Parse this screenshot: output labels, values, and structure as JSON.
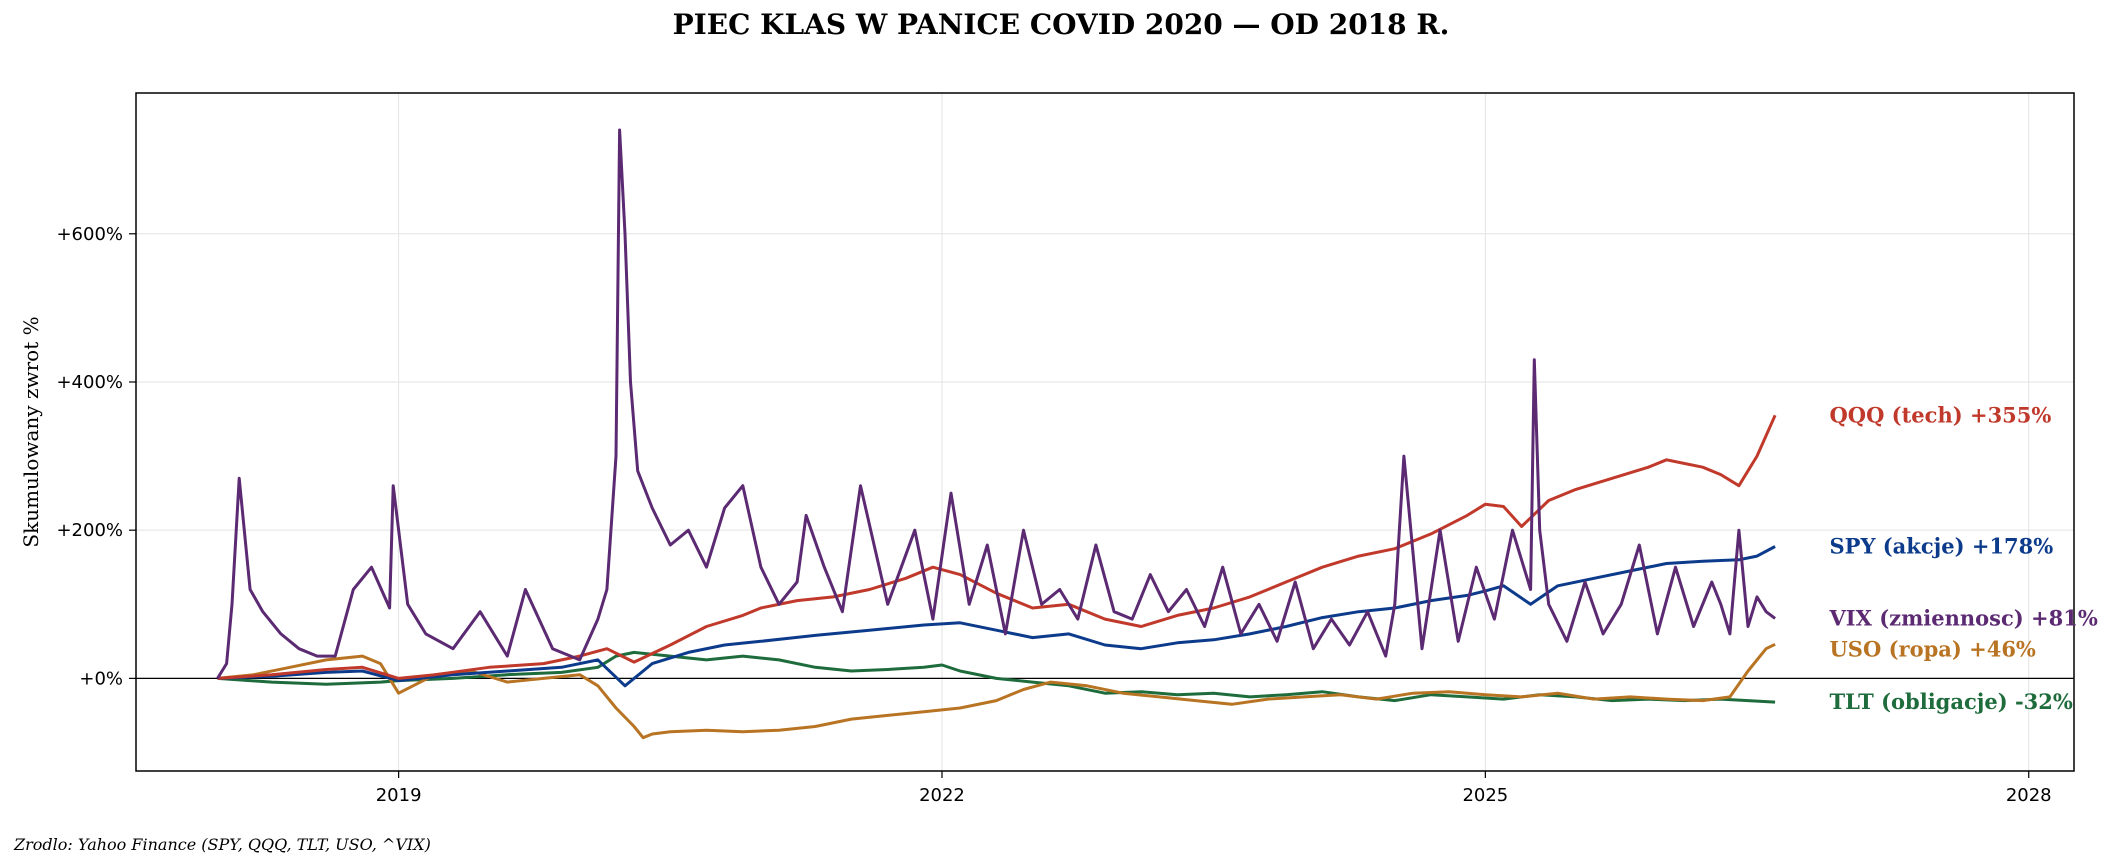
{
  "chart_data": {
    "type": "line",
    "title": "PIEC KLAS W PANICE COVID 2020 — OD 2018 R.",
    "ylabel": "Skumulowany zwrot %",
    "xlim": [
      2017.55,
      2028.25
    ],
    "ylim": [
      -125,
      790
    ],
    "xticks": [
      {
        "value": 2019,
        "label": "2019"
      },
      {
        "value": 2022,
        "label": "2022"
      },
      {
        "value": 2025,
        "label": "2025"
      },
      {
        "value": 2028,
        "label": "2028"
      }
    ],
    "yticks": [
      {
        "value": 0,
        "label": "+0%"
      },
      {
        "value": 200,
        "label": "+200%"
      },
      {
        "value": 400,
        "label": "+400%"
      },
      {
        "value": 600,
        "label": "+600%"
      }
    ],
    "grid": true,
    "zero_line": true,
    "source": "Zrodlo: Yahoo Finance (SPY, QQQ, TLT, USO, ^VIX)",
    "series": [
      {
        "name": "QQQ (tech)",
        "label": "QQQ (tech)  +355%",
        "color": "#c0392b",
        "x": [
          2018.0,
          2018.3,
          2018.6,
          2018.8,
          2019.0,
          2019.2,
          2019.5,
          2019.8,
          2020.0,
          2020.15,
          2020.3,
          2020.5,
          2020.7,
          2020.9,
          2021.0,
          2021.2,
          2021.4,
          2021.6,
          2021.8,
          2021.95,
          2022.1,
          2022.3,
          2022.5,
          2022.7,
          2022.9,
          2023.1,
          2023.3,
          2023.5,
          2023.7,
          2023.9,
          2024.1,
          2024.3,
          2024.5,
          2024.7,
          2024.9,
          2025.0,
          2025.1,
          2025.2,
          2025.35,
          2025.5,
          2025.7,
          2025.9,
          2026.0,
          2026.1,
          2026.2,
          2026.3,
          2026.4,
          2026.5,
          2026.6
        ],
        "y": [
          0,
          5,
          12,
          15,
          0,
          5,
          15,
          20,
          30,
          40,
          22,
          45,
          70,
          85,
          95,
          105,
          110,
          120,
          135,
          150,
          140,
          115,
          95,
          100,
          80,
          70,
          85,
          95,
          110,
          130,
          150,
          165,
          175,
          195,
          220,
          235,
          232,
          205,
          240,
          255,
          270,
          285,
          295,
          290,
          285,
          275,
          260,
          300,
          355
        ]
      },
      {
        "name": "SPY (akcje)",
        "label": "SPY (akcje)  +178%",
        "color": "#0d3b8c",
        "x": [
          2018.0,
          2018.3,
          2018.6,
          2018.8,
          2019.0,
          2019.3,
          2019.6,
          2019.9,
          2020.1,
          2020.25,
          2020.4,
          2020.6,
          2020.8,
          2021.0,
          2021.3,
          2021.6,
          2021.9,
          2022.1,
          2022.3,
          2022.5,
          2022.7,
          2022.9,
          2023.1,
          2023.3,
          2023.5,
          2023.7,
          2023.9,
          2024.1,
          2024.3,
          2024.5,
          2024.7,
          2024.9,
          2025.0,
          2025.1,
          2025.25,
          2025.4,
          2025.6,
          2025.8,
          2026.0,
          2026.2,
          2026.4,
          2026.5,
          2026.6
        ],
        "y": [
          0,
          3,
          8,
          10,
          -3,
          5,
          10,
          15,
          25,
          -10,
          20,
          35,
          45,
          50,
          58,
          65,
          72,
          75,
          65,
          55,
          60,
          45,
          40,
          48,
          52,
          60,
          70,
          82,
          90,
          95,
          105,
          112,
          118,
          125,
          100,
          125,
          135,
          145,
          155,
          158,
          160,
          165,
          178
        ]
      },
      {
        "name": "VIX (zmiennosc)",
        "label": "VIX (zmiennosc)  +81%",
        "color": "#5b2a72",
        "x": [
          2018.0,
          2018.05,
          2018.08,
          2018.12,
          2018.18,
          2018.25,
          2018.35,
          2018.45,
          2018.55,
          2018.65,
          2018.75,
          2018.85,
          2018.95,
          2018.97,
          2019.05,
          2019.15,
          2019.3,
          2019.45,
          2019.6,
          2019.7,
          2019.85,
          2020.0,
          2020.1,
          2020.15,
          2020.2,
          2020.22,
          2020.25,
          2020.28,
          2020.32,
          2020.4,
          2020.5,
          2020.6,
          2020.7,
          2020.8,
          2020.9,
          2021.0,
          2021.1,
          2021.2,
          2021.25,
          2021.35,
          2021.45,
          2021.55,
          2021.7,
          2021.85,
          2021.95,
          2022.05,
          2022.15,
          2022.25,
          2022.35,
          2022.45,
          2022.55,
          2022.65,
          2022.75,
          2022.85,
          2022.95,
          2023.05,
          2023.15,
          2023.25,
          2023.35,
          2023.45,
          2023.55,
          2023.65,
          2023.75,
          2023.85,
          2023.95,
          2024.05,
          2024.15,
          2024.25,
          2024.35,
          2024.45,
          2024.5,
          2024.55,
          2024.65,
          2024.75,
          2024.85,
          2024.95,
          2025.05,
          2025.15,
          2025.25,
          2025.27,
          2025.3,
          2025.35,
          2025.45,
          2025.55,
          2025.65,
          2025.75,
          2025.85,
          2025.95,
          2026.05,
          2026.15,
          2026.25,
          2026.3,
          2026.35,
          2026.4,
          2026.45,
          2026.5,
          2026.55,
          2026.6
        ],
        "y": [
          0,
          20,
          100,
          270,
          120,
          90,
          60,
          40,
          30,
          30,
          120,
          150,
          95,
          260,
          100,
          60,
          40,
          90,
          30,
          120,
          40,
          25,
          80,
          120,
          300,
          740,
          600,
          400,
          280,
          230,
          180,
          200,
          150,
          230,
          260,
          150,
          100,
          130,
          220,
          150,
          90,
          260,
          100,
          200,
          80,
          250,
          100,
          180,
          60,
          200,
          100,
          120,
          80,
          180,
          90,
          80,
          140,
          90,
          120,
          70,
          150,
          60,
          100,
          50,
          130,
          40,
          80,
          45,
          90,
          30,
          100,
          300,
          40,
          200,
          50,
          150,
          80,
          200,
          120,
          430,
          200,
          100,
          50,
          130,
          60,
          100,
          180,
          60,
          150,
          70,
          130,
          100,
          60,
          200,
          70,
          110,
          90,
          81
        ]
      },
      {
        "name": "USO (ropa)",
        "label": "USO (ropa)  +46%",
        "color": "#b87423",
        "x": [
          2018.0,
          2018.2,
          2018.4,
          2018.6,
          2018.8,
          2018.9,
          2019.0,
          2019.2,
          2019.4,
          2019.6,
          2019.8,
          2020.0,
          2020.1,
          2020.2,
          2020.3,
          2020.35,
          2020.4,
          2020.5,
          2020.7,
          2020.9,
          2021.1,
          2021.3,
          2021.5,
          2021.7,
          2021.9,
          2022.1,
          2022.3,
          2022.45,
          2022.6,
          2022.8,
          2023.0,
          2023.2,
          2023.4,
          2023.6,
          2023.8,
          2024.0,
          2024.2,
          2024.4,
          2024.6,
          2024.8,
          2025.0,
          2025.2,
          2025.4,
          2025.6,
          2025.8,
          2026.0,
          2026.2,
          2026.35,
          2026.45,
          2026.55,
          2026.6
        ],
        "y": [
          0,
          5,
          15,
          25,
          30,
          20,
          -20,
          5,
          10,
          -5,
          0,
          5,
          -10,
          -40,
          -65,
          -80,
          -75,
          -72,
          -70,
          -72,
          -70,
          -65,
          -55,
          -50,
          -45,
          -40,
          -30,
          -15,
          -5,
          -10,
          -20,
          -25,
          -30,
          -35,
          -28,
          -25,
          -22,
          -28,
          -20,
          -18,
          -22,
          -25,
          -20,
          -28,
          -25,
          -28,
          -30,
          -25,
          10,
          40,
          46
        ]
      },
      {
        "name": "TLT (obligacje)",
        "label": "TLT (obligacje)  -32%",
        "color": "#1e6b3c",
        "x": [
          2018.0,
          2018.3,
          2018.6,
          2018.9,
          2019.0,
          2019.3,
          2019.6,
          2019.9,
          2020.1,
          2020.2,
          2020.3,
          2020.5,
          2020.7,
          2020.9,
          2021.1,
          2021.3,
          2021.5,
          2021.7,
          2021.9,
          2022.0,
          2022.1,
          2022.3,
          2022.5,
          2022.7,
          2022.9,
          2023.1,
          2023.3,
          2023.5,
          2023.7,
          2023.9,
          2024.1,
          2024.3,
          2024.5,
          2024.7,
          2024.9,
          2025.1,
          2025.3,
          2025.5,
          2025.7,
          2025.9,
          2026.1,
          2026.3,
          2026.45,
          2026.6
        ],
        "y": [
          0,
          -5,
          -8,
          -5,
          -3,
          0,
          5,
          8,
          15,
          30,
          35,
          30,
          25,
          30,
          25,
          15,
          10,
          12,
          15,
          18,
          10,
          0,
          -5,
          -10,
          -20,
          -18,
          -22,
          -20,
          -25,
          -22,
          -18,
          -25,
          -30,
          -22,
          -25,
          -28,
          -22,
          -25,
          -30,
          -28,
          -30,
          -28,
          -30,
          -32
        ]
      }
    ]
  }
}
